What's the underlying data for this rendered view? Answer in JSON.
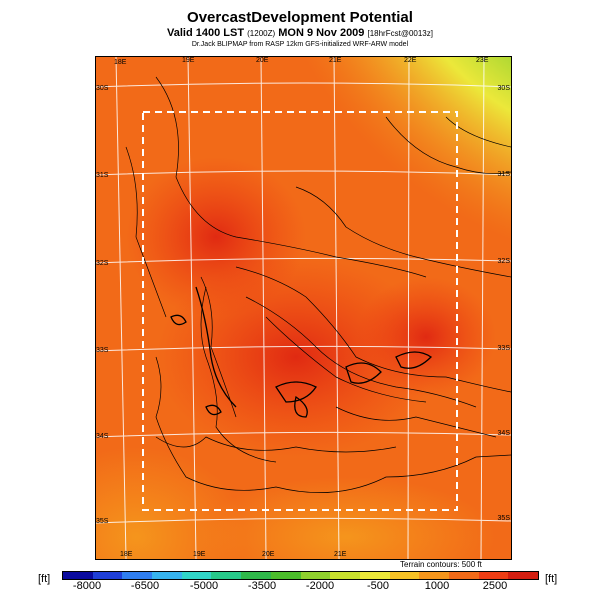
{
  "title": "OvercastDevelopment Potential",
  "subtitle": {
    "main": "Valid 1400 LST",
    "code": "(1200Z)",
    "date": "MON 9 Nov 2009",
    "run": "[18hrFcst@0013z]"
  },
  "credit": "Dr.Jack BLIPMAP from RASP 12km GFS-initialized WRF-ARW model",
  "longitude_labels_top": [
    "18E",
    "19E",
    "20E",
    "21E",
    "22E",
    "23E"
  ],
  "longitude_labels_bottom": [
    "18E",
    "19E",
    "20E",
    "21E"
  ],
  "latitude_labels_left": [
    "30S",
    "31S",
    "32S",
    "33S",
    "34S",
    "35S"
  ],
  "latitude_labels_right": [
    "30S",
    "31S",
    "32S",
    "33S",
    "34S",
    "35S"
  ],
  "terrain_note": "Terrain contours: 500 ft",
  "colorbar": {
    "unit_left": "[ft]",
    "unit_right": "[ft]",
    "tick_labels": [
      "-8000",
      "-6500",
      "-5000",
      "-3500",
      "-2000",
      "-500",
      "1000",
      "2500"
    ],
    "colors": [
      "#0a0a9e",
      "#1f3fd8",
      "#2f7ef0",
      "#36b3ee",
      "#30d6c8",
      "#27c98a",
      "#2fb84a",
      "#4cbe2c",
      "#8fd02e",
      "#c8df2d",
      "#ece83a",
      "#f6c125",
      "#f5951c",
      "#f26a18",
      "#ee3d14",
      "#d41e10"
    ]
  }
}
